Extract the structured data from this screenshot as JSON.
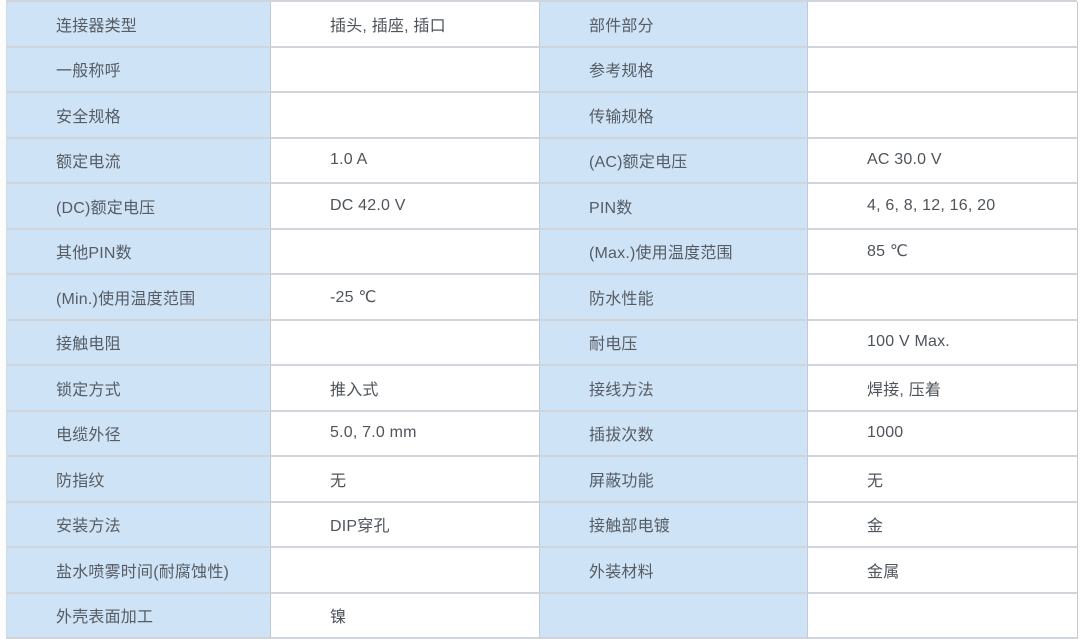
{
  "colors": {
    "label_cell_bg": "#cfe3f6",
    "value_cell_bg": "#ffffff",
    "border": "#cfd5da",
    "text": "#565c64"
  },
  "table": {
    "rows": [
      {
        "ll": "连接器类型",
        "lv": "插头, 插座, 插口",
        "rl": "部件部分",
        "rv": ""
      },
      {
        "ll": "一般称呼",
        "lv": "",
        "rl": "参考规格",
        "rv": ""
      },
      {
        "ll": "安全规格",
        "lv": "",
        "rl": "传输规格",
        "rv": ""
      },
      {
        "ll": "额定电流",
        "lv": "1.0 A",
        "rl": "(AC)额定电压",
        "rv": "AC 30.0 V"
      },
      {
        "ll": "(DC)额定电压",
        "lv": "DC 42.0 V",
        "rl": "PIN数",
        "rv": "4, 6, 8, 12, 16, 20"
      },
      {
        "ll": "其他PIN数",
        "lv": "",
        "rl": "(Max.)使用温度范围",
        "rv": "85 ℃"
      },
      {
        "ll": "(Min.)使用温度范围",
        "lv": "-25 ℃",
        "rl": "防水性能",
        "rv": ""
      },
      {
        "ll": "接触电阻",
        "lv": "",
        "rl": "耐电压",
        "rv": "100 V Max."
      },
      {
        "ll": "锁定方式",
        "lv": "推入式",
        "rl": "接线方法",
        "rv": "焊接, 压着"
      },
      {
        "ll": "电缆外径",
        "lv": "5.0, 7.0 mm",
        "rl": "插拔次数",
        "rv": "1000"
      },
      {
        "ll": "防指纹",
        "lv": "无",
        "rl": "屏蔽功能",
        "rv": "无"
      },
      {
        "ll": "安装方法",
        "lv": "DIP穿孔",
        "rl": "接触部电镀",
        "rv": "金"
      },
      {
        "ll": "盐水喷雾时间(耐腐蚀性)",
        "lv": "",
        "rl": "外装材料",
        "rv": "金属"
      },
      {
        "ll": "外壳表面加工",
        "lv": "镍",
        "rl": "",
        "rv": ""
      }
    ]
  }
}
